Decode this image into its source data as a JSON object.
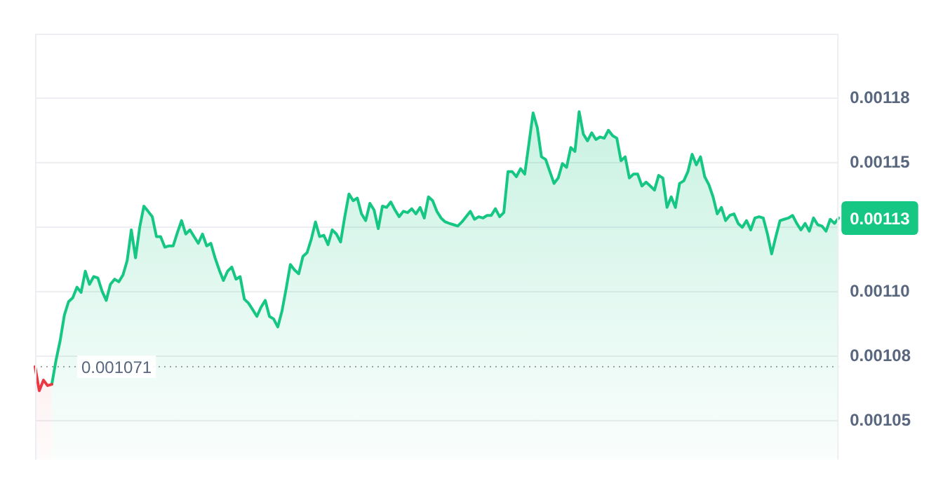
{
  "chart_data": {
    "type": "area",
    "categories": [
      null,
      null,
      null,
      null,
      null,
      null,
      null,
      null,
      null,
      null,
      null,
      null,
      null,
      null,
      null,
      null,
      null,
      null,
      null,
      null,
      null,
      null,
      null,
      null,
      null,
      null,
      null,
      null,
      null,
      null,
      null,
      null,
      null,
      null,
      null,
      null,
      null,
      null,
      null,
      null,
      null,
      null,
      null,
      null,
      null,
      null,
      null,
      null,
      null,
      null,
      null,
      null,
      null,
      null,
      null,
      null,
      null,
      null,
      null,
      null,
      null,
      null,
      null,
      null,
      null,
      null,
      null,
      null,
      null,
      null,
      null,
      null,
      null,
      null,
      null,
      null,
      null,
      null,
      null,
      null,
      null,
      null,
      null,
      null,
      null,
      null,
      null,
      null,
      null,
      null,
      null,
      null,
      null,
      null,
      null,
      null,
      null,
      null,
      null,
      null,
      null,
      null,
      null,
      null,
      null,
      null,
      null,
      null,
      null,
      null,
      null,
      null,
      null,
      null,
      null,
      null,
      null,
      null,
      null,
      null,
      null,
      null,
      null,
      null,
      null,
      null,
      null,
      null,
      null,
      null,
      null,
      null,
      null,
      null,
      null,
      null,
      null,
      null,
      null,
      null,
      null,
      null,
      null,
      null,
      null,
      null,
      null,
      null,
      null,
      null,
      null,
      null,
      null,
      null,
      null,
      null,
      null,
      null,
      null,
      null,
      null,
      null,
      null,
      null,
      null,
      null,
      null,
      null,
      null,
      null,
      null,
      null,
      null,
      null,
      null,
      null,
      null,
      null,
      null,
      null,
      null,
      null,
      null,
      null,
      null,
      null,
      null,
      null,
      null,
      null,
      null,
      null,
      null
    ],
    "ylim": [
      0.001035,
      0.0012
    ],
    "yticks": [
      {
        "value": 0.00105,
        "label": "0.00105"
      },
      {
        "value": 0.001075,
        "label": "0.00108"
      },
      {
        "value": 0.0011,
        "label": "0.00110"
      },
      {
        "value": 0.001125,
        "label": null
      },
      {
        "value": 0.00115,
        "label": "0.00115"
      },
      {
        "value": 0.001175,
        "label": "0.00118"
      }
    ],
    "tick_labels": "y",
    "grid": "y",
    "legend": false,
    "marker": "none",
    "line_style": "solid",
    "ref_lines": [
      {
        "axis": "y",
        "value": 0.001071,
        "label": "0.001071",
        "line_style": "dotted",
        "color": "#a0a4ac"
      }
    ],
    "annotations": [
      "0.00113"
    ],
    "series": [
      {
        "color": "#ea3943",
        "values": [
          0.001071,
          0.0010617,
          0.0010658,
          0.0010637,
          0.0010642,
          null,
          null,
          null,
          null,
          null,
          null,
          null,
          null,
          null,
          null,
          null,
          null,
          null,
          null,
          null,
          null,
          null,
          null,
          null,
          null,
          null,
          null,
          null,
          null,
          null,
          null,
          null,
          null,
          null,
          null,
          null,
          null,
          null,
          null,
          null,
          null,
          null,
          null,
          null,
          null,
          null,
          null,
          null,
          null,
          null,
          null,
          null,
          null,
          null,
          null,
          null,
          null,
          null,
          null,
          null,
          null,
          null,
          null,
          null,
          null,
          null,
          null,
          null,
          null,
          null,
          null,
          null,
          null,
          null,
          null,
          null,
          null,
          null,
          null,
          null,
          null,
          null,
          null,
          null,
          null,
          null,
          null,
          null,
          null,
          null,
          null,
          null,
          null,
          null,
          null,
          null,
          null,
          null,
          null,
          null,
          null,
          null,
          null,
          null,
          null,
          null,
          null,
          null,
          null,
          null,
          null,
          null,
          null,
          null,
          null,
          null,
          null,
          null,
          null,
          null,
          null,
          null,
          null,
          null,
          null,
          null,
          null,
          null,
          null,
          null,
          null,
          null,
          null,
          null,
          null,
          null,
          null,
          null,
          null,
          null,
          null,
          null,
          null,
          null,
          null,
          null,
          null,
          null,
          null,
          null,
          null,
          null,
          null,
          null,
          null,
          null,
          null,
          null,
          null,
          null,
          null,
          null,
          null,
          null,
          null,
          null,
          null,
          null,
          null,
          null,
          null,
          null,
          null,
          null,
          null,
          null,
          null,
          null,
          null,
          null,
          null,
          null,
          null,
          null,
          null,
          null,
          null,
          null,
          null,
          null,
          null,
          null,
          null
        ]
      },
      {
        "color": "#16c784",
        "values": [
          null,
          null,
          null,
          null,
          0.0010642,
          0.0010735,
          0.0010812,
          0.001091,
          0.0010962,
          0.0010977,
          0.0011018,
          0.0010998,
          0.001108,
          0.0011029,
          0.0011059,
          0.0011054,
          0.0011003,
          0.0010967,
          0.0011029,
          0.0011049,
          0.0011039,
          0.0011065,
          0.0011121,
          0.001124,
          0.0011132,
          0.001125,
          0.0011332,
          0.0011312,
          0.0011291,
          0.0011214,
          0.0011214,
          0.0011173,
          0.0011178,
          0.0011178,
          0.0011229,
          0.0011276,
          0.0011224,
          0.001124,
          0.0011214,
          0.0011188,
          0.0011224,
          0.0011178,
          0.0011188,
          0.0011132,
          0.0011085,
          0.0011044,
          0.001108,
          0.0011096,
          0.0011049,
          0.0011059,
          0.0010972,
          0.0010956,
          0.0010931,
          0.0010905,
          0.0010941,
          0.0010967,
          0.0010905,
          0.0010895,
          0.0010864,
          0.0010926,
          0.0011013,
          0.0011106,
          0.0011085,
          0.001107,
          0.0011137,
          0.0011152,
          0.0011204,
          0.0011271,
          0.0011214,
          0.0011219,
          0.0011183,
          0.001124,
          0.0011224,
          0.0011193,
          0.0011291,
          0.0011379,
          0.0011353,
          0.0011363,
          0.0011302,
          0.0011276,
          0.0011343,
          0.0011317,
          0.0011245,
          0.0011332,
          0.0011327,
          0.0011348,
          0.0011317,
          0.0011291,
          0.0011312,
          0.0011307,
          0.0011322,
          0.0011302,
          0.0011327,
          0.0011286,
          0.0011368,
          0.0011353,
          0.0011312,
          0.0011286,
          0.0011271,
          0.0011265,
          0.001126,
          0.0011255,
          0.0011271,
          0.0011291,
          0.0011312,
          0.0011281,
          0.0011291,
          0.0011286,
          0.0011296,
          0.0011296,
          0.0011322,
          0.0011291,
          0.0011307,
          0.0011466,
          0.0011466,
          0.0011446,
          0.0011477,
          0.0011456,
          0.0011574,
          0.0011693,
          0.0011636,
          0.0011523,
          0.0011513,
          0.0011466,
          0.001142,
          0.0011441,
          0.0011497,
          0.0011482,
          0.0011559,
          0.0011544,
          0.0011698,
          0.0011611,
          0.0011585,
          0.0011616,
          0.001159,
          0.00116,
          0.0011595,
          0.0011626,
          0.0011605,
          0.0011595,
          0.0011508,
          0.0011523,
          0.0011441,
          0.0011456,
          0.0011456,
          0.001141,
          0.0011425,
          0.001141,
          0.0011394,
          0.0011451,
          0.0011441,
          0.0011327,
          0.0011368,
          0.0011327,
          0.001142,
          0.001143,
          0.0011466,
          0.0011533,
          0.0011492,
          0.0011523,
          0.0011446,
          0.0011415,
          0.0011368,
          0.0011302,
          0.0011327,
          0.0011276,
          0.0011296,
          0.0011302,
          0.0011265,
          0.001125,
          0.0011276,
          0.001124,
          0.0011286,
          0.0011291,
          0.0011286,
          0.0011224,
          0.0011147,
          0.0011214,
          0.0011276,
          0.0011281,
          0.0011286,
          0.0011296,
          0.0011265,
          0.001124,
          0.0011265,
          0.0011235,
          0.0011286,
          0.001126,
          0.0011255,
          0.0011235,
          0.0011281,
          0.0011265,
          0.0011286
        ]
      }
    ]
  }
}
